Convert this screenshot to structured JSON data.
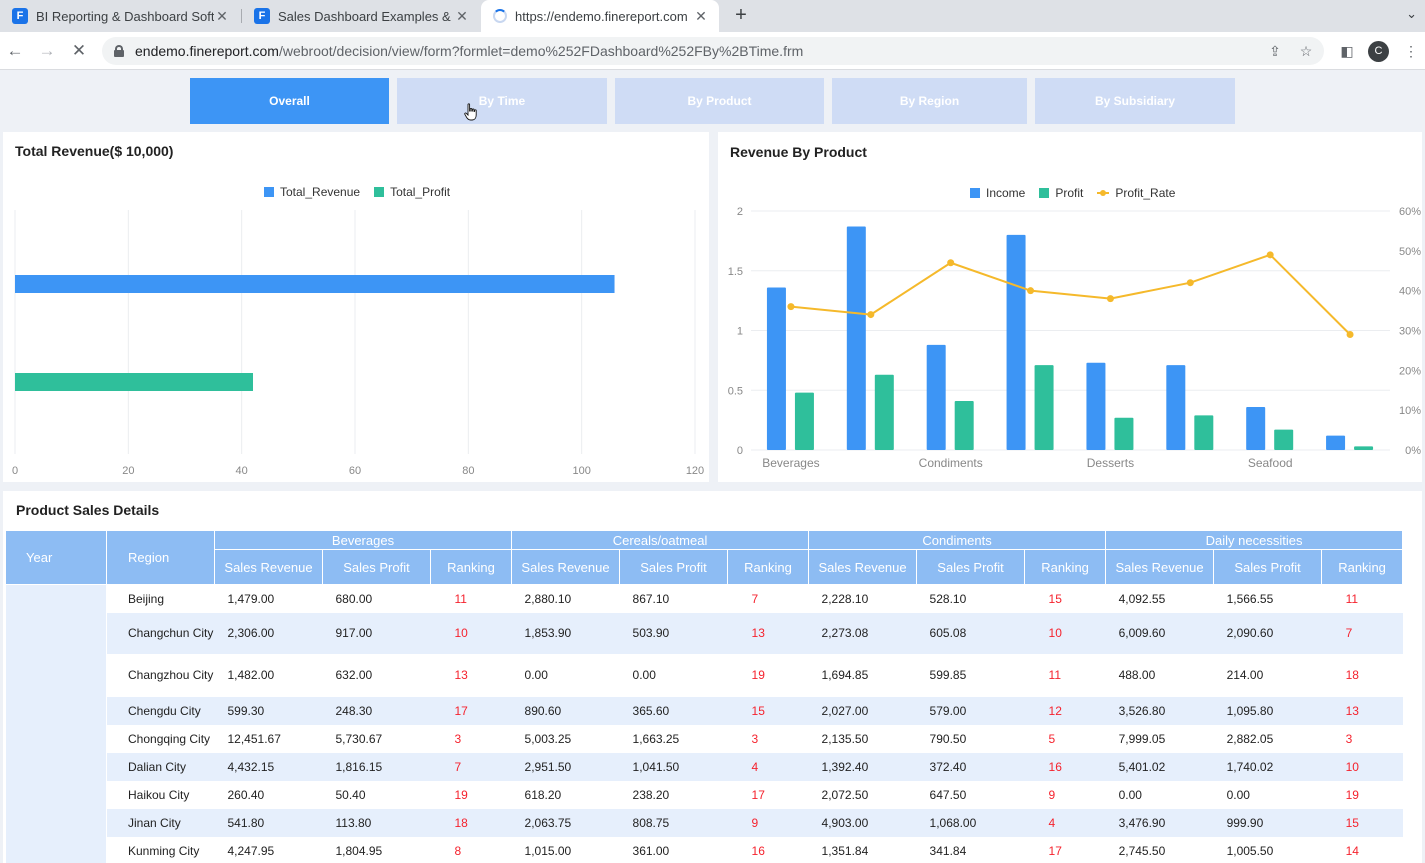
{
  "browser": {
    "tabs": [
      {
        "title": "BI Reporting & Dashboard Soft",
        "icon": "finereport-icon"
      },
      {
        "title": "Sales Dashboard Examples & T",
        "icon": "finereport-icon"
      },
      {
        "title": "https://endemo.finereport.com",
        "icon": "loading-spinner-icon"
      }
    ],
    "url_host": "endemo.finereport.com",
    "url_path": "/webroot/decision/view/form?formlet=demo%252FDashboard%252FBy%2BTime.frm",
    "avatar_letter": "C"
  },
  "nav": {
    "buttons": [
      "Overall",
      "By Time",
      "By Product",
      "By Region",
      "By Subsidiary"
    ],
    "active": "Overall"
  },
  "total_revenue": {
    "title": "Total Revenue($ 10,000)",
    "legend": [
      "Total_Revenue",
      "Total_Profit"
    ],
    "chart_data": {
      "type": "bar",
      "orientation": "horizontal",
      "series": [
        {
          "name": "Total_Revenue",
          "value": 105.8,
          "color": "#3d95f5"
        },
        {
          "name": "Total_Profit",
          "value": 42,
          "color": "#2fbf9b"
        }
      ],
      "xlim": [
        0,
        120
      ],
      "x_ticks": [
        "0",
        "20",
        "40",
        "60",
        "80",
        "100",
        "120"
      ],
      "grid": true
    }
  },
  "revenue_by_product": {
    "title": "Revenue By Product",
    "legend": [
      "Income",
      "Profit",
      "Profit_Rate"
    ],
    "chart_data": {
      "type": "bar",
      "categories": [
        "Beverages",
        "",
        "Condiments",
        "",
        "Desserts",
        "",
        "Seafood",
        ""
      ],
      "x_tick_labels": [
        "Beverages",
        "Condiments",
        "Desserts",
        "Seafood"
      ],
      "series": [
        {
          "name": "Income",
          "type": "bar",
          "color": "#3d95f5",
          "values": [
            1.36,
            1.87,
            0.88,
            1.8,
            0.73,
            0.71,
            0.36,
            0.12
          ]
        },
        {
          "name": "Profit",
          "type": "bar",
          "color": "#2fbf9b",
          "values": [
            0.48,
            0.63,
            0.41,
            0.71,
            0.27,
            0.29,
            0.17,
            0.03
          ]
        },
        {
          "name": "Profit_Rate",
          "type": "line",
          "axis": "right",
          "color": "#f5b92b",
          "values": [
            36,
            34,
            47,
            40,
            38,
            42,
            49,
            29
          ]
        }
      ],
      "ylim": [
        0,
        2
      ],
      "y_ticks": [
        "0",
        "0.5",
        "1",
        "1.5",
        "2"
      ],
      "y2lim": [
        0,
        60
      ],
      "y2_ticks": [
        "0%",
        "10%",
        "20%",
        "30%",
        "40%",
        "50%",
        "60%"
      ],
      "grid": true
    }
  },
  "details": {
    "title": "Product Sales Details",
    "year_header": "Year",
    "region_header": "Region",
    "groups": [
      "Beverages",
      "Cereals/oatmeal",
      "Condiments",
      "Daily necessities"
    ],
    "sub_headers": [
      "Sales Revenue",
      "Sales Profit",
      "Ranking"
    ],
    "rows": [
      {
        "region": "Beijing",
        "cells": [
          "1,479.00",
          "680.00",
          "11",
          "2,880.10",
          "867.10",
          "7",
          "2,228.10",
          "528.10",
          "15",
          "4,092.55",
          "1,566.55",
          "11"
        ]
      },
      {
        "region": "Changchun City",
        "cells": [
          "2,306.00",
          "917.00",
          "10",
          "1,853.90",
          "503.90",
          "13",
          "2,273.08",
          "605.08",
          "10",
          "6,009.60",
          "2,090.60",
          "7"
        ]
      },
      {
        "region": "Changzhou City",
        "cells": [
          "1,482.00",
          "632.00",
          "13",
          "0.00",
          "0.00",
          "19",
          "1,694.85",
          "599.85",
          "11",
          "488.00",
          "214.00",
          "18"
        ]
      },
      {
        "region": "Chengdu City",
        "cells": [
          "599.30",
          "248.30",
          "17",
          "890.60",
          "365.60",
          "15",
          "2,027.00",
          "579.00",
          "12",
          "3,526.80",
          "1,095.80",
          "13"
        ]
      },
      {
        "region": "Chongqing City",
        "cells": [
          "12,451.67",
          "5,730.67",
          "3",
          "5,003.25",
          "1,663.25",
          "3",
          "2,135.50",
          "790.50",
          "5",
          "7,999.05",
          "2,882.05",
          "3"
        ]
      },
      {
        "region": "Dalian City",
        "cells": [
          "4,432.15",
          "1,816.15",
          "7",
          "2,951.50",
          "1,041.50",
          "4",
          "1,392.40",
          "372.40",
          "16",
          "5,401.02",
          "1,740.02",
          "10"
        ]
      },
      {
        "region": "Haikou City",
        "cells": [
          "260.40",
          "50.40",
          "19",
          "618.20",
          "238.20",
          "17",
          "2,072.50",
          "647.50",
          "9",
          "0.00",
          "0.00",
          "19"
        ]
      },
      {
        "region": "Jinan City",
        "cells": [
          "541.80",
          "113.80",
          "18",
          "2,063.75",
          "808.75",
          "9",
          "4,903.00",
          "1,068.00",
          "4",
          "3,476.90",
          "999.90",
          "15"
        ]
      },
      {
        "region": "Kunming City",
        "cells": [
          "4,247.95",
          "1,804.95",
          "8",
          "1,015.00",
          "361.00",
          "16",
          "1,351.84",
          "341.84",
          "17",
          "2,745.50",
          "1,005.50",
          "14"
        ]
      }
    ]
  }
}
